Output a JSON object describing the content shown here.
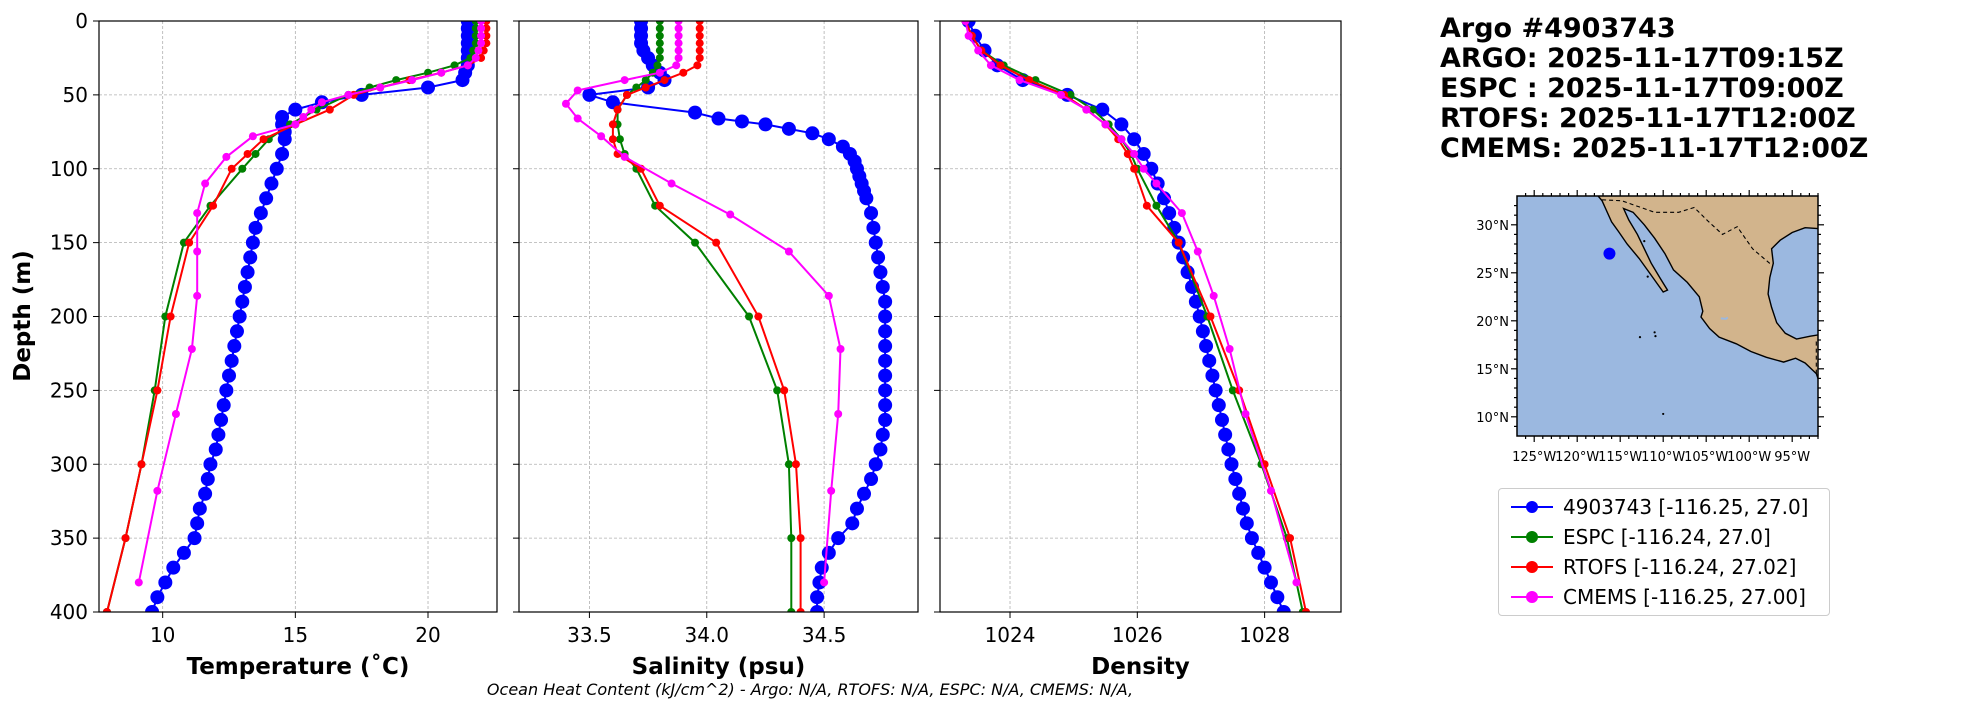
{
  "info_lines": {
    "title": "Argo #4903743",
    "argo": "ARGO: 2025-11-17T09:15Z",
    "espc": "ESPC : 2025-11-17T09:00Z",
    "rtofs": "RTOFS: 2025-11-17T12:00Z",
    "cmems": "CMEMS: 2025-11-17T12:00Z"
  },
  "footer": "Ocean Heat Content (kJ/cm^2) - Argo: N/A,  RTOFS: N/A,  ESPC: N/A,  CMEMS: N/A,",
  "colors": {
    "argo": "#0000ff",
    "espc": "#008000",
    "rtofs": "#ff0000",
    "cmems": "#ff00ff",
    "ocean": "#9bb8e0",
    "land": "#d2b48c"
  },
  "legend": [
    {
      "label": "4903743 [-116.25, 27.0]",
      "color": "#0000ff"
    },
    {
      "label": "ESPC [-116.24, 27.0]",
      "color": "#008000"
    },
    {
      "label": "RTOFS [-116.24, 27.02]",
      "color": "#ff0000"
    },
    {
      "label": "CMEMS [-116.25, 27.00]",
      "color": "#ff00ff"
    }
  ],
  "chart_data": [
    {
      "type": "line",
      "xlabel": "Temperature (˚C)",
      "ylabel": "Depth (m)",
      "xlim": [
        7.6,
        22.6
      ],
      "ylim": [
        400,
        0
      ],
      "xticks": [
        10,
        15,
        20
      ],
      "yticks": [
        0,
        50,
        100,
        150,
        200,
        250,
        300,
        350,
        400
      ],
      "grid": true,
      "series": [
        {
          "name": "4903743",
          "color": "#0000ff",
          "marker_size": 7,
          "depth": [
            0,
            5,
            10,
            15,
            20,
            25,
            30,
            35,
            40,
            45,
            50,
            55,
            60,
            65,
            70,
            75,
            80,
            90,
            100,
            110,
            120,
            130,
            140,
            150,
            160,
            170,
            180,
            190,
            200,
            210,
            220,
            230,
            240,
            250,
            260,
            270,
            280,
            290,
            300,
            310,
            320,
            330,
            340,
            350,
            360,
            370,
            380,
            390,
            400
          ],
          "values": [
            21.5,
            21.5,
            21.5,
            21.5,
            21.5,
            21.5,
            21.5,
            21.4,
            21.3,
            20.0,
            17.5,
            16.0,
            15.0,
            14.5,
            14.5,
            14.6,
            14.6,
            14.5,
            14.3,
            14.1,
            13.9,
            13.7,
            13.5,
            13.4,
            13.3,
            13.2,
            13.1,
            13.0,
            12.9,
            12.8,
            12.7,
            12.6,
            12.5,
            12.4,
            12.3,
            12.2,
            12.1,
            12.0,
            11.8,
            11.7,
            11.6,
            11.4,
            11.3,
            11.2,
            10.8,
            10.4,
            10.1,
            9.8,
            9.6
          ]
        },
        {
          "name": "ESPC",
          "color": "#008000",
          "marker_size": 4,
          "depth": [
            0,
            5,
            10,
            15,
            20,
            25,
            30,
            35,
            40,
            45,
            50,
            60,
            70,
            80,
            90,
            100,
            125,
            150,
            200,
            250,
            300,
            350,
            400
          ],
          "values": [
            21.8,
            21.8,
            21.8,
            21.8,
            21.7,
            21.6,
            21.0,
            20.0,
            18.8,
            17.8,
            17.0,
            15.8,
            14.8,
            14.0,
            13.5,
            13.0,
            11.8,
            10.8,
            10.1,
            9.7,
            9.2,
            8.6,
            7.9
          ]
        },
        {
          "name": "RTOFS",
          "color": "#ff0000",
          "marker_size": 4,
          "depth": [
            0,
            5,
            10,
            15,
            20,
            25,
            30,
            35,
            40,
            45,
            50,
            60,
            70,
            80,
            90,
            100,
            125,
            150,
            200,
            250,
            300,
            350,
            400
          ],
          "values": [
            22.2,
            22.2,
            22.2,
            22.2,
            22.1,
            22.0,
            21.5,
            20.5,
            19.3,
            18.2,
            17.2,
            16.3,
            15.0,
            13.8,
            13.2,
            12.6,
            11.9,
            11.0,
            10.3,
            9.8,
            9.2,
            8.6,
            7.9
          ]
        },
        {
          "name": "CMEMS",
          "color": "#ff00ff",
          "marker_size": 4,
          "depth": [
            0,
            5,
            10,
            15,
            20,
            25,
            30,
            35,
            40,
            45,
            50,
            55,
            60,
            65,
            70,
            78,
            92,
            110,
            130,
            156,
            186,
            222,
            266,
            318,
            380
          ],
          "values": [
            22.0,
            22.0,
            22.0,
            22.0,
            21.9,
            21.8,
            21.5,
            20.5,
            19.4,
            18.2,
            17.0,
            16.0,
            15.6,
            15.3,
            15.0,
            13.4,
            12.4,
            11.6,
            11.3,
            11.3,
            11.3,
            11.1,
            10.5,
            9.8,
            9.1
          ]
        }
      ]
    },
    {
      "type": "line",
      "xlabel": "Salinity (psu)",
      "xlim": [
        33.2,
        34.9
      ],
      "ylim": [
        400,
        0
      ],
      "xticks": [
        33.5,
        34.0,
        34.5
      ],
      "xtick_labels": [
        "33.5",
        "34.0",
        "34.5"
      ],
      "yticks": [
        0,
        50,
        100,
        150,
        200,
        250,
        300,
        350,
        400
      ],
      "grid": true,
      "series": [
        {
          "name": "4903743",
          "color": "#0000ff",
          "marker_size": 7,
          "depth": [
            0,
            5,
            10,
            15,
            20,
            25,
            30,
            35,
            40,
            45,
            50,
            55,
            62,
            66,
            68,
            70,
            73,
            76,
            80,
            85,
            90,
            95,
            100,
            105,
            110,
            115,
            120,
            130,
            140,
            150,
            160,
            170,
            180,
            190,
            200,
            210,
            220,
            230,
            240,
            250,
            260,
            270,
            280,
            290,
            300,
            310,
            320,
            330,
            340,
            350,
            360,
            370,
            380,
            390,
            400
          ],
          "values": [
            33.72,
            33.72,
            33.72,
            33.72,
            33.73,
            33.75,
            33.77,
            33.8,
            33.82,
            33.75,
            33.5,
            33.6,
            33.95,
            34.05,
            34.15,
            34.25,
            34.35,
            34.45,
            34.52,
            34.58,
            34.61,
            34.63,
            34.64,
            34.65,
            34.66,
            34.67,
            34.68,
            34.7,
            34.71,
            34.72,
            34.73,
            34.74,
            34.75,
            34.76,
            34.76,
            34.76,
            34.76,
            34.76,
            34.76,
            34.76,
            34.76,
            34.76,
            34.75,
            34.74,
            34.72,
            34.7,
            34.67,
            34.64,
            34.62,
            34.56,
            34.52,
            34.49,
            34.48,
            34.47,
            34.47
          ]
        },
        {
          "name": "ESPC",
          "color": "#008000",
          "marker_size": 4,
          "depth": [
            0,
            5,
            10,
            15,
            20,
            25,
            30,
            35,
            40,
            45,
            50,
            60,
            70,
            80,
            90,
            100,
            125,
            150,
            200,
            250,
            300,
            350,
            400
          ],
          "values": [
            33.8,
            33.8,
            33.8,
            33.8,
            33.8,
            33.8,
            33.79,
            33.77,
            33.74,
            33.7,
            33.66,
            33.62,
            33.62,
            33.63,
            33.65,
            33.7,
            33.78,
            33.95,
            34.18,
            34.3,
            34.35,
            34.36,
            34.36
          ]
        },
        {
          "name": "RTOFS",
          "color": "#ff0000",
          "marker_size": 4,
          "depth": [
            0,
            5,
            10,
            15,
            20,
            25,
            30,
            35,
            40,
            45,
            50,
            60,
            70,
            80,
            90,
            100,
            125,
            150,
            200,
            250,
            300,
            350,
            400
          ],
          "values": [
            33.97,
            33.97,
            33.97,
            33.97,
            33.97,
            33.97,
            33.96,
            33.9,
            33.82,
            33.74,
            33.66,
            33.62,
            33.6,
            33.6,
            33.62,
            33.72,
            33.8,
            34.04,
            34.22,
            34.33,
            34.38,
            34.4,
            34.4
          ]
        },
        {
          "name": "CMEMS",
          "color": "#ff00ff",
          "marker_size": 4,
          "depth": [
            0,
            5,
            10,
            15,
            20,
            25,
            30,
            35,
            40,
            47,
            56,
            66,
            78,
            92,
            110,
            131,
            156,
            186,
            222,
            266,
            318,
            380
          ],
          "values": [
            33.88,
            33.88,
            33.88,
            33.88,
            33.88,
            33.88,
            33.87,
            33.8,
            33.65,
            33.45,
            33.4,
            33.45,
            33.55,
            33.65,
            33.85,
            34.1,
            34.35,
            34.52,
            34.57,
            34.56,
            34.53,
            34.5
          ]
        }
      ]
    },
    {
      "type": "line",
      "xlabel": "Density",
      "xlim": [
        1022.9,
        1029.2
      ],
      "ylim": [
        400,
        0
      ],
      "xticks": [
        1024,
        1026,
        1028
      ],
      "yticks": [
        0,
        50,
        100,
        150,
        200,
        250,
        300,
        350,
        400
      ],
      "grid": true,
      "series": [
        {
          "name": "4903743",
          "color": "#0000ff",
          "marker_size": 7,
          "depth": [
            0,
            10,
            20,
            30,
            40,
            50,
            60,
            70,
            80,
            90,
            100,
            110,
            120,
            130,
            140,
            150,
            160,
            170,
            180,
            190,
            200,
            210,
            220,
            230,
            240,
            250,
            260,
            270,
            280,
            290,
            300,
            310,
            320,
            330,
            340,
            350,
            360,
            370,
            380,
            390,
            400
          ],
          "values": [
            1023.35,
            1023.45,
            1023.6,
            1023.8,
            1024.2,
            1024.9,
            1025.45,
            1025.75,
            1025.95,
            1026.1,
            1026.22,
            1026.32,
            1026.42,
            1026.5,
            1026.58,
            1026.65,
            1026.72,
            1026.79,
            1026.86,
            1026.92,
            1026.98,
            1027.03,
            1027.08,
            1027.13,
            1027.18,
            1027.23,
            1027.28,
            1027.33,
            1027.38,
            1027.43,
            1027.48,
            1027.54,
            1027.6,
            1027.66,
            1027.72,
            1027.8,
            1027.9,
            1028.0,
            1028.1,
            1028.2,
            1028.3
          ]
        },
        {
          "name": "ESPC",
          "color": "#008000",
          "marker_size": 4,
          "depth": [
            0,
            10,
            20,
            30,
            40,
            50,
            60,
            70,
            80,
            90,
            100,
            125,
            150,
            200,
            250,
            300,
            350,
            400
          ],
          "values": [
            1023.3,
            1023.4,
            1023.55,
            1023.9,
            1024.4,
            1024.95,
            1025.3,
            1025.55,
            1025.75,
            1025.9,
            1026.0,
            1026.3,
            1026.65,
            1027.1,
            1027.5,
            1027.95,
            1028.35,
            1028.6
          ]
        },
        {
          "name": "RTOFS",
          "color": "#ff0000",
          "marker_size": 4,
          "depth": [
            0,
            10,
            20,
            30,
            40,
            50,
            60,
            70,
            80,
            90,
            100,
            125,
            150,
            200,
            250,
            300,
            350,
            400
          ],
          "values": [
            1023.3,
            1023.4,
            1023.55,
            1023.85,
            1024.3,
            1024.85,
            1025.2,
            1025.5,
            1025.7,
            1025.85,
            1025.95,
            1026.15,
            1026.65,
            1027.15,
            1027.6,
            1028.0,
            1028.4,
            1028.65
          ]
        },
        {
          "name": "CMEMS",
          "color": "#ff00ff",
          "marker_size": 4,
          "depth": [
            0,
            10,
            20,
            30,
            40,
            50,
            60,
            70,
            80,
            90,
            100,
            110,
            130,
            156,
            186,
            222,
            266,
            318,
            380
          ],
          "values": [
            1023.3,
            1023.35,
            1023.5,
            1023.7,
            1024.15,
            1024.8,
            1025.2,
            1025.5,
            1025.75,
            1025.95,
            1026.1,
            1026.3,
            1026.7,
            1026.95,
            1027.2,
            1027.45,
            1027.7,
            1028.1,
            1028.5
          ]
        }
      ]
    }
  ],
  "map": {
    "lon_labels": [
      "125°W",
      "120°W",
      "115°W",
      "110°W",
      "105°W",
      "100°W",
      "95°W"
    ],
    "lat_labels": [
      "30°N",
      "25°N",
      "20°N",
      "15°N",
      "10°N"
    ],
    "float_lon": -116.25,
    "float_lat": 27.0,
    "lon_range": [
      -127,
      -92
    ],
    "lat_range": [
      8,
      33
    ]
  }
}
